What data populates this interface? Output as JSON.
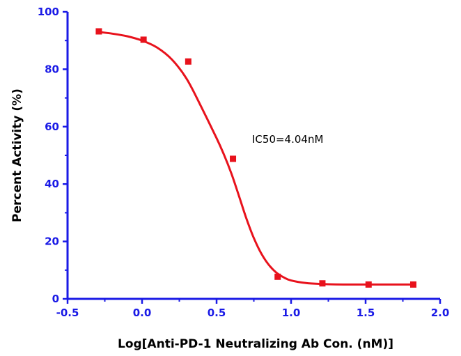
{
  "chart_data": {
    "type": "scatter",
    "title": "",
    "xlabel": "Log[Anti-PD-1 Neutralizing Ab Con. (nM)]",
    "ylabel": "Percent Activity (%)",
    "xlim": [
      -0.5,
      2.0
    ],
    "ylim": [
      0,
      100
    ],
    "x_ticks": [
      "-0.5",
      "0.0",
      "0.5",
      "1.0",
      "1.5",
      "2.0"
    ],
    "y_ticks": [
      "0",
      "20",
      "40",
      "60",
      "80",
      "100"
    ],
    "grid": false,
    "legend": "none",
    "annotation": "IC50=4.04nM",
    "points": {
      "x": [
        -0.29,
        0.01,
        0.31,
        0.61,
        0.91,
        1.21,
        1.52,
        1.82
      ],
      "y": [
        93.2,
        90.3,
        82.7,
        48.8,
        7.7,
        5.4,
        5.0,
        5.0
      ]
    },
    "fit_curve": {
      "x": [
        -0.29,
        -0.2,
        -0.1,
        0.0,
        0.1,
        0.2,
        0.3,
        0.4,
        0.5,
        0.55,
        0.6,
        0.65,
        0.7,
        0.75,
        0.8,
        0.85,
        0.9,
        0.95,
        1.0,
        1.1,
        1.2,
        1.3,
        1.4,
        1.5,
        1.6,
        1.7,
        1.82
      ],
      "y": [
        93.0,
        92.4,
        91.5,
        90.0,
        87.6,
        83.4,
        76.6,
        66.6,
        56.0,
        50.2,
        43.6,
        35.9,
        28.0,
        21.2,
        15.8,
        11.9,
        9.2,
        7.5,
        6.4,
        5.5,
        5.2,
        5.05,
        5.0,
        5.0,
        5.0,
        5.0,
        5.0
      ]
    },
    "colors": {
      "axis": "#1a1ae6",
      "series": "#e8121c",
      "text": "#000000"
    }
  }
}
